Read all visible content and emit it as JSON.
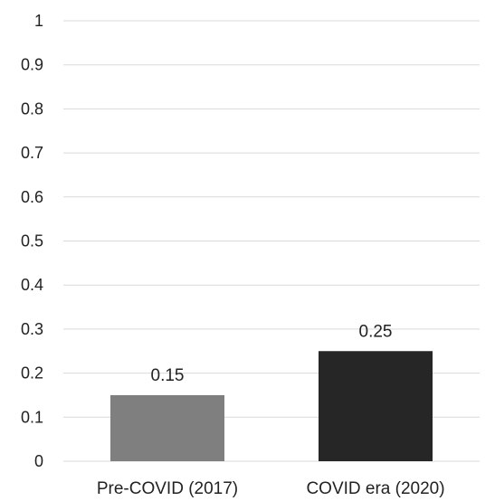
{
  "chart_data": {
    "type": "bar",
    "categories": [
      "Pre-COVID (2017)",
      "COVID era (2020)"
    ],
    "values": [
      0.15,
      0.25
    ],
    "data_labels": [
      "0.15",
      "0.25"
    ],
    "colors": [
      "#7f7f7f",
      "#262626"
    ],
    "title": "",
    "xlabel": "",
    "ylabel": "",
    "ylim": [
      0,
      1
    ],
    "yticks": [
      0,
      0.1,
      0.2,
      0.3,
      0.4,
      0.5,
      0.6,
      0.7,
      0.8,
      0.9,
      1
    ],
    "ytick_labels": [
      "0",
      "0.1",
      "0.2",
      "0.3",
      "0.4",
      "0.5",
      "0.6",
      "0.7",
      "0.8",
      "0.9",
      "1"
    ],
    "grid": true,
    "legend": "none"
  }
}
